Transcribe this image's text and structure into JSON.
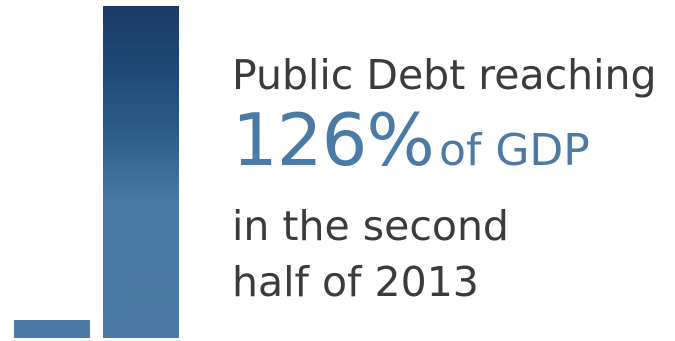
{
  "headline": {
    "line1": "Public Debt reaching",
    "figure": "126%",
    "figure_suffix": "of GDP",
    "line3": "in the second",
    "line4": "half of 2013"
  },
  "graphic": {
    "value": 126,
    "unit": "% of GDP"
  },
  "colors": {
    "accent_blue": "#4a7aa5",
    "dark_blue": "#1c3a66",
    "text_gray": "#3b3b3b",
    "background": "#ffffff"
  }
}
